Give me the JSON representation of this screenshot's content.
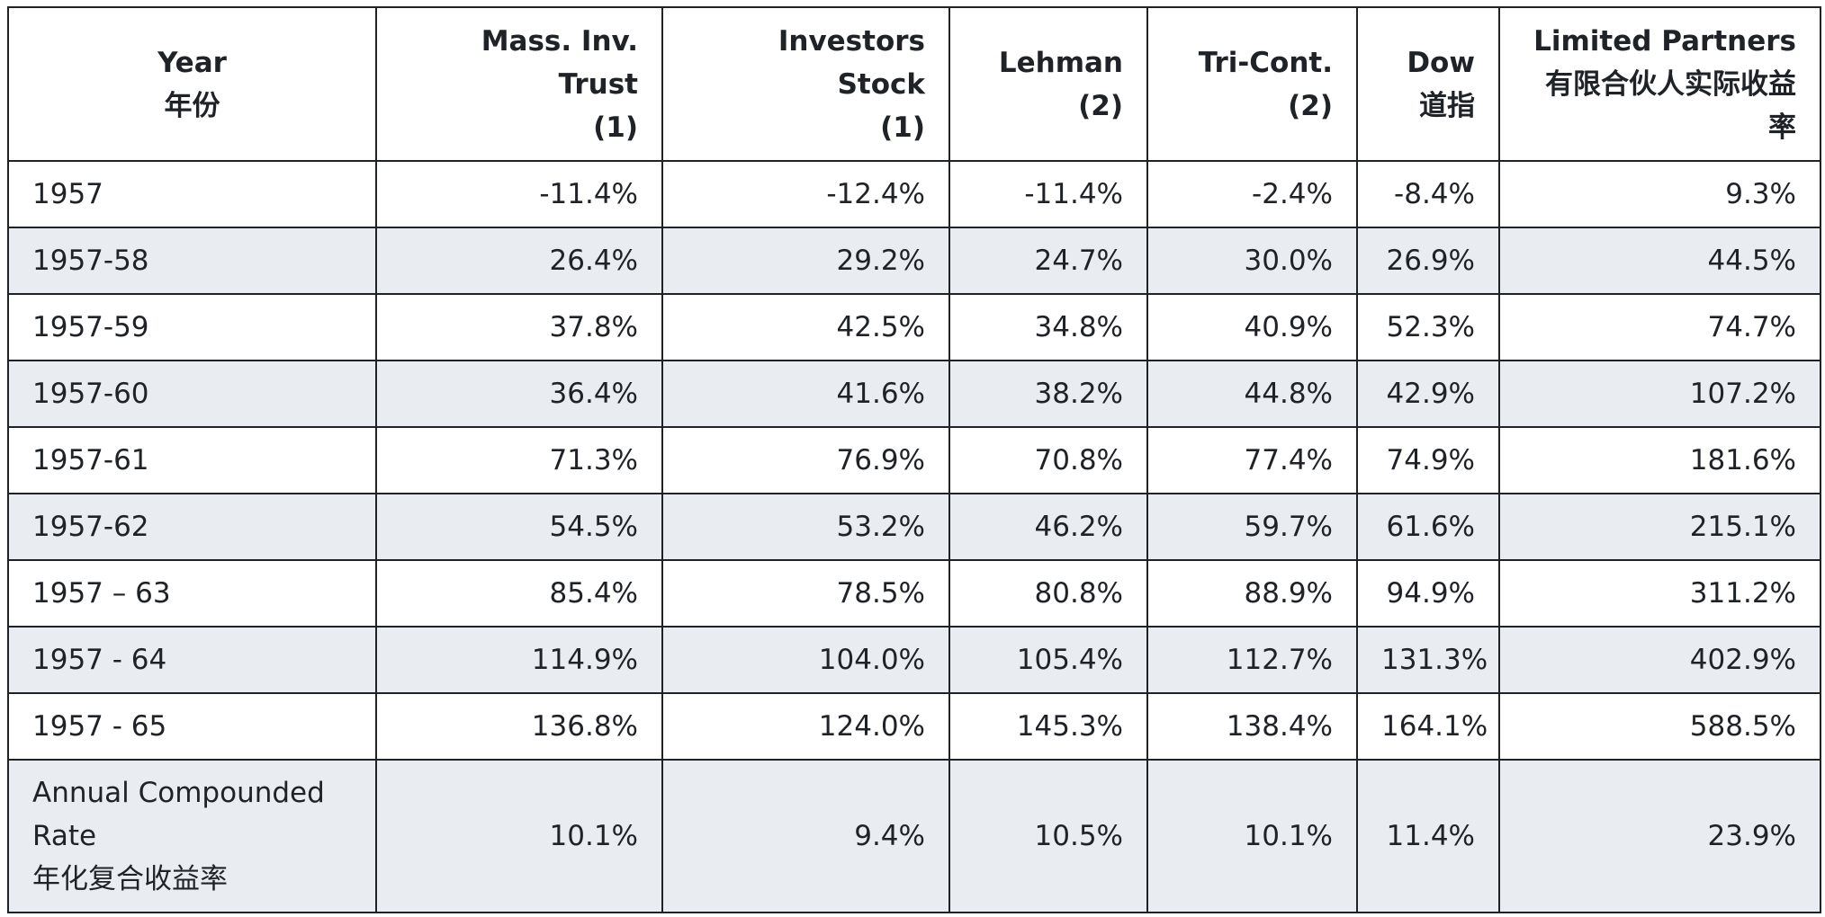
{
  "table": {
    "headers": [
      {
        "line1": "Year",
        "line2": "年份",
        "line3": ""
      },
      {
        "line1": "Mass. Inv. Trust",
        "line2": "(1)",
        "line3": ""
      },
      {
        "line1": "Investors Stock",
        "line2": "(1)",
        "line3": ""
      },
      {
        "line1": "Lehman",
        "line2": "(2)",
        "line3": ""
      },
      {
        "line1": "Tri-Cont.",
        "line2": "(2)",
        "line3": ""
      },
      {
        "line1": "Dow",
        "line2": "道指",
        "line3": ""
      },
      {
        "line1": "Limited Partners",
        "line2": "有限合伙人实际收益",
        "line3": "率"
      }
    ],
    "rows": [
      [
        "1957",
        "-11.4%",
        "-12.4%",
        "-11.4%",
        "-2.4%",
        "-8.4%",
        "9.3%"
      ],
      [
        "1957-58",
        "26.4%",
        "29.2%",
        "24.7%",
        "30.0%",
        "26.9%",
        "44.5%"
      ],
      [
        "1957-59",
        "37.8%",
        "42.5%",
        "34.8%",
        "40.9%",
        "52.3%",
        "74.7%"
      ],
      [
        "1957-60",
        "36.4%",
        "41.6%",
        "38.2%",
        "44.8%",
        "42.9%",
        "107.2%"
      ],
      [
        "1957-61",
        "71.3%",
        "76.9%",
        "70.8%",
        "77.4%",
        "74.9%",
        "181.6%"
      ],
      [
        "1957-62",
        "54.5%",
        "53.2%",
        "46.2%",
        "59.7%",
        "61.6%",
        "215.1%"
      ],
      [
        "1957 – 63",
        "85.4%",
        "78.5%",
        "80.8%",
        "88.9%",
        "94.9%",
        "311.2%"
      ],
      [
        "1957 - 64",
        "114.9%",
        "104.0%",
        "105.4%",
        "112.7%",
        "131.3%",
        "402.9%"
      ],
      [
        "1957 - 65",
        "136.8%",
        "124.0%",
        "145.3%",
        "138.4%",
        "164.1%",
        "588.5%"
      ]
    ],
    "summary": {
      "label_line1": "Annual Compounded",
      "label_line2": "Rate",
      "label_line3": "年化复合收益率",
      "values": [
        "10.1%",
        "9.4%",
        "10.5%",
        "10.1%",
        "11.4%",
        "23.9%"
      ]
    }
  }
}
